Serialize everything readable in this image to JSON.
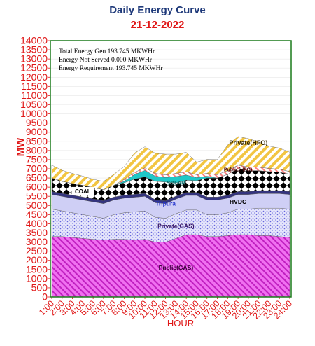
{
  "title": "Daily Energy Curve",
  "subtitle": "21-12-2022",
  "info": {
    "line1": "Total Energy Gen 193.745 MKWHr",
    "line2": "Energy Not Served   0.000 MKWHr",
    "line3": "Energy Requirement     193.745 MKWHr"
  },
  "chart_data": {
    "type": "area",
    "stacked": true,
    "title": "Daily Energy Curve",
    "subtitle": "21-12-2022",
    "xlabel": "HOUR",
    "ylabel": "MW",
    "ylim": [
      0,
      14000
    ],
    "yticks": [
      0,
      500,
      1000,
      1500,
      2000,
      2500,
      3000,
      3500,
      4000,
      4500,
      5000,
      5500,
      6000,
      6500,
      7000,
      7500,
      8000,
      8500,
      9000,
      9500,
      10000,
      10500,
      11000,
      11500,
      12000,
      12500,
      13000,
      13500,
      14000
    ],
    "categories": [
      "1:00",
      "2:00",
      "3:00",
      "4:00",
      "5:00",
      "6:00",
      "7:00",
      "8:00",
      "9:00",
      "10:00",
      "11:00",
      "12:00",
      "13:00",
      "14:00",
      "15:00",
      "16:00",
      "17:00",
      "18:00",
      "19:00",
      "20:00",
      "21:00",
      "22:00",
      "23:00",
      "24:00"
    ],
    "series": [
      {
        "name": "Public(GAS)",
        "color": "#e040e0",
        "values": [
          3300,
          3300,
          3250,
          3200,
          3150,
          3100,
          3150,
          3150,
          3100,
          3150,
          3000,
          3000,
          3200,
          3400,
          3400,
          3300,
          3300,
          3350,
          3400,
          3400,
          3350,
          3350,
          3300,
          3250
        ]
      },
      {
        "name": "Private(GAS)",
        "color": "#9999ee",
        "values": [
          1500,
          1400,
          1350,
          1300,
          1250,
          1200,
          1350,
          1450,
          1550,
          1550,
          1350,
          1300,
          1350,
          1350,
          1350,
          1200,
          1200,
          1250,
          1400,
          1400,
          1500,
          1500,
          1550,
          1550
        ]
      },
      {
        "name": "HVDC",
        "color": "#ccccf5",
        "values": [
          800,
          800,
          800,
          800,
          800,
          800,
          800,
          800,
          800,
          800,
          800,
          800,
          800,
          800,
          800,
          800,
          800,
          800,
          800,
          800,
          800,
          800,
          800,
          800
        ]
      },
      {
        "name": "Tripura",
        "color": "#3a3a8a",
        "values": [
          160,
          160,
          160,
          160,
          160,
          160,
          160,
          160,
          160,
          160,
          160,
          160,
          160,
          160,
          160,
          160,
          160,
          160,
          160,
          160,
          160,
          160,
          160,
          160
        ]
      },
      {
        "name": "COAL",
        "color": "#000000",
        "values": [
          740,
          660,
          640,
          640,
          620,
          600,
          640,
          680,
          830,
          900,
          1010,
          1020,
          720,
          670,
          640,
          1040,
          1040,
          1140,
          1240,
          1140,
          1090,
          1040,
          1010,
          950
        ]
      },
      {
        "name": "SOLAR",
        "color": "#20c0c0",
        "values": [
          0,
          0,
          0,
          0,
          0,
          0,
          0,
          80,
          250,
          350,
          280,
          250,
          350,
          280,
          170,
          100,
          0,
          0,
          0,
          0,
          0,
          0,
          0,
          0
        ]
      },
      {
        "name": "Public(HFO)",
        "color": "#ff9090",
        "values": [
          0,
          0,
          0,
          0,
          0,
          0,
          0,
          100,
          120,
          140,
          150,
          140,
          170,
          180,
          160,
          150,
          180,
          200,
          200,
          200,
          190,
          170,
          160,
          140
        ]
      },
      {
        "name": "Private(HFO)",
        "color": "#f2c542",
        "values": [
          700,
          600,
          550,
          500,
          450,
          450,
          600,
          700,
          1050,
          1150,
          1100,
          1130,
          1050,
          1060,
          680,
          760,
          820,
          1400,
          1560,
          1550,
          1370,
          1220,
          1150,
          1060
        ]
      }
    ]
  }
}
